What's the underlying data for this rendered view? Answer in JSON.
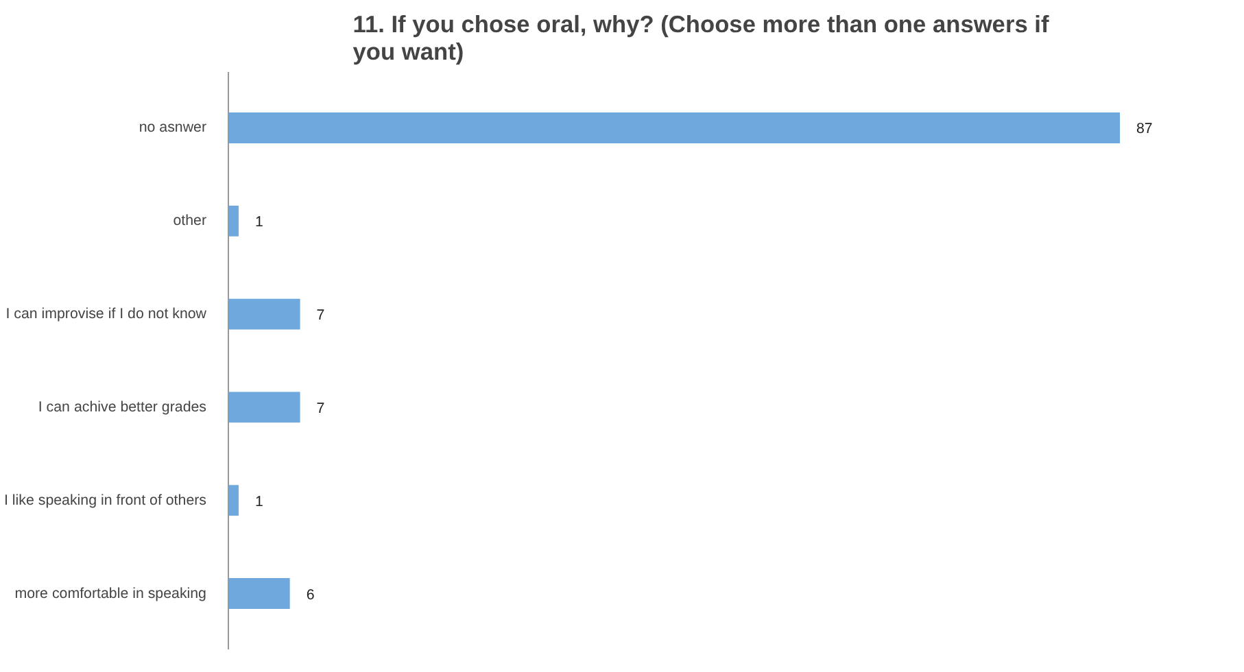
{
  "chart_data": {
    "type": "bar",
    "orientation": "horizontal",
    "title": "11. If you chose oral, why? (Choose more than one answers if you want)",
    "categories": [
      "no asnwer",
      "other",
      "I can improvise if I do not know",
      "I can achive better grades",
      "I like speaking in front of others",
      "more comfortable in speaking"
    ],
    "values": [
      87,
      1,
      7,
      7,
      1,
      6
    ],
    "color": "#6fa8dc",
    "data_labels": true
  }
}
